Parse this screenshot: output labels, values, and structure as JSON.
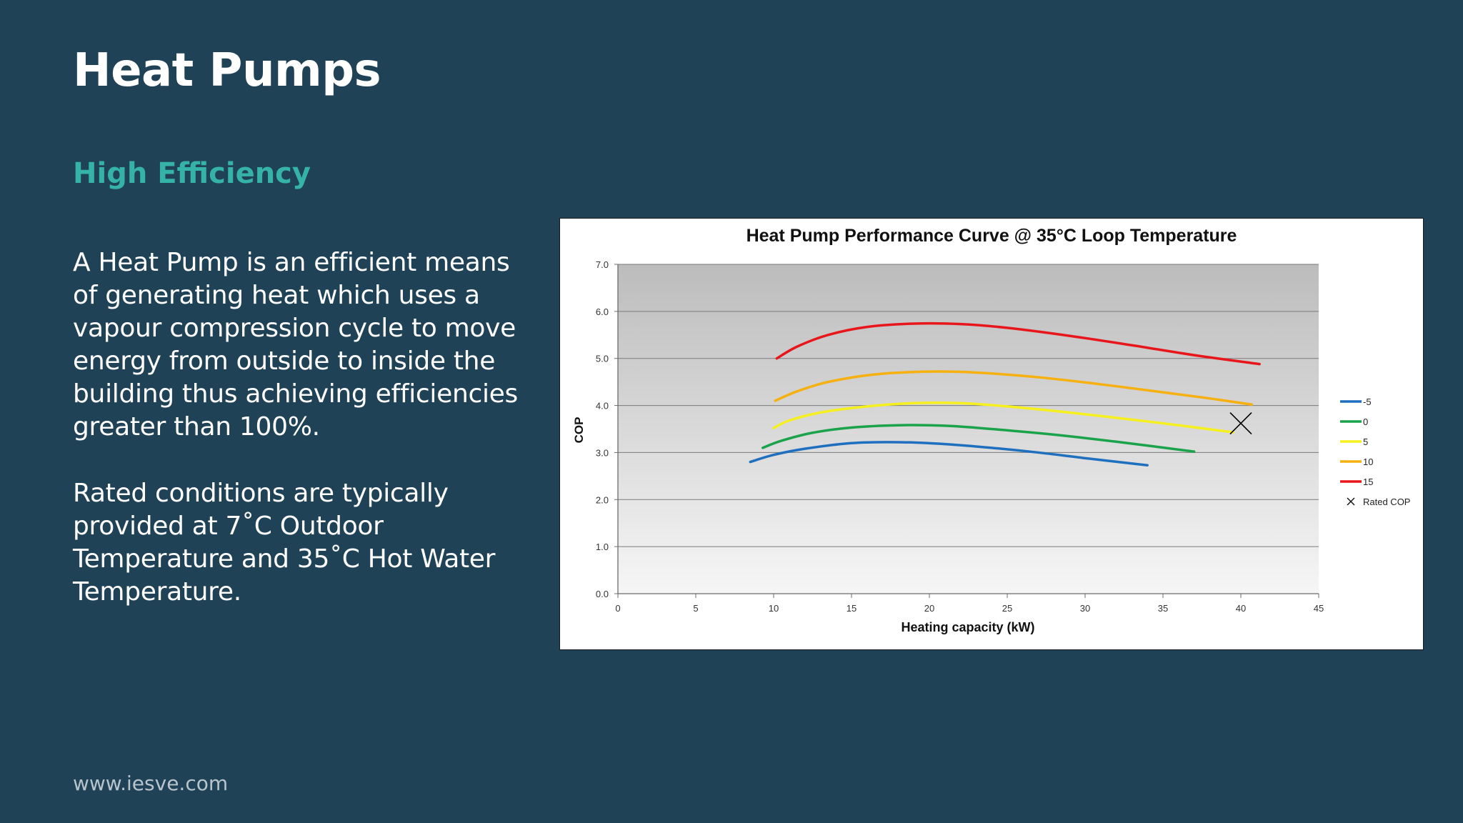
{
  "slide": {
    "title": "Heat Pumps",
    "subtitle": "High Efficiency",
    "paragraph_1": "A Heat Pump is an efficient means of generating heat which uses a vapour compression cycle to move energy from outside to inside the building thus achieving efficiencies greater than 100%.",
    "paragraph_2": "Rated conditions are typically provided at 7˚C Outdoor Temperature and 35˚C Hot Water Temperature.",
    "footer_url": "www.iesve.com"
  },
  "colors": {
    "background": "#1f4257",
    "title": "#ffffff",
    "subtitle": "#35b3a8",
    "footer": "#b8c4cc"
  },
  "chart_data": {
    "type": "line",
    "title": "Heat Pump Performance Curve @ 35°C Loop Temperature",
    "xlabel": "Heating capacity (kW)",
    "ylabel": "COP",
    "xlim": [
      0,
      45
    ],
    "ylim": [
      0,
      7
    ],
    "xticks": [
      0,
      5,
      10,
      15,
      20,
      25,
      30,
      35,
      40,
      45
    ],
    "yticks": [
      0,
      1,
      2,
      3,
      4,
      5,
      6,
      7
    ],
    "ytick_labels": [
      "0.0",
      "1.0",
      "2.0",
      "3.0",
      "4.0",
      "5.0",
      "6.0",
      "7.0"
    ],
    "grid": "horizontal",
    "legend_position": "right",
    "series": [
      {
        "name": "-5",
        "color": "#1f6fbf",
        "x": [
          8.5,
          10,
          12,
          15,
          18,
          21,
          24,
          27,
          30,
          34
        ],
        "y": [
          2.8,
          2.95,
          3.08,
          3.2,
          3.22,
          3.18,
          3.1,
          3.0,
          2.88,
          2.73
        ]
      },
      {
        "name": "0",
        "color": "#1aa34a",
        "x": [
          9.3,
          10.5,
          12.5,
          15,
          18,
          21,
          24,
          28,
          32,
          37
        ],
        "y": [
          3.1,
          3.25,
          3.42,
          3.53,
          3.58,
          3.57,
          3.5,
          3.38,
          3.23,
          3.02
        ]
      },
      {
        "name": "5",
        "color": "#f5f01e",
        "x": [
          10,
          11,
          13,
          16,
          19,
          22,
          25,
          29,
          33,
          36,
          39.5
        ],
        "y": [
          3.52,
          3.68,
          3.85,
          3.98,
          4.05,
          4.05,
          3.98,
          3.85,
          3.7,
          3.58,
          3.43
        ]
      },
      {
        "name": "10",
        "color": "#f6b00f",
        "x": [
          10.1,
          11.5,
          13.5,
          16.5,
          20,
          23,
          27,
          31,
          35,
          38,
          40.7
        ],
        "y": [
          4.1,
          4.3,
          4.5,
          4.66,
          4.72,
          4.7,
          4.6,
          4.45,
          4.28,
          4.15,
          4.02
        ]
      },
      {
        "name": "15",
        "color": "#e8161b",
        "x": [
          10.2,
          11.5,
          13.5,
          16,
          19,
          22,
          25,
          29,
          33,
          37,
          41.2
        ],
        "y": [
          5.0,
          5.25,
          5.5,
          5.67,
          5.74,
          5.73,
          5.65,
          5.48,
          5.28,
          5.07,
          4.88
        ]
      }
    ],
    "markers": [
      {
        "name": "Rated COP",
        "symbol": "x",
        "x": [
          40
        ],
        "y": [
          3.62
        ],
        "color": "#000000"
      }
    ]
  }
}
